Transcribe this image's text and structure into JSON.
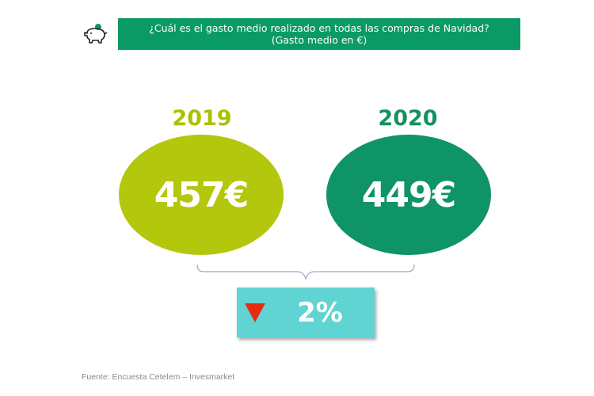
{
  "header": {
    "title": "¿Cuál es el gasto medio realizado en todas las compras de Navidad?",
    "subtitle": "(Gasto medio en €)",
    "icon": "piggy-bank-icon",
    "color": "#0a9a66"
  },
  "chart_data": {
    "type": "bar",
    "categories": [
      "2019",
      "2020"
    ],
    "values": [
      457,
      449
    ],
    "value_labels": [
      "457€",
      "449€"
    ],
    "colors": [
      "#b3c70d",
      "#0f9468"
    ],
    "year_label_colors": [
      "#a9c200",
      "#15915f"
    ],
    "change": {
      "label": "2%",
      "direction": "down",
      "arrow_color": "#e82b10",
      "box_color": "#5fd4d2"
    }
  },
  "footer": {
    "source": "Fuente: Encuesta Cetelem – Invesmarket"
  }
}
